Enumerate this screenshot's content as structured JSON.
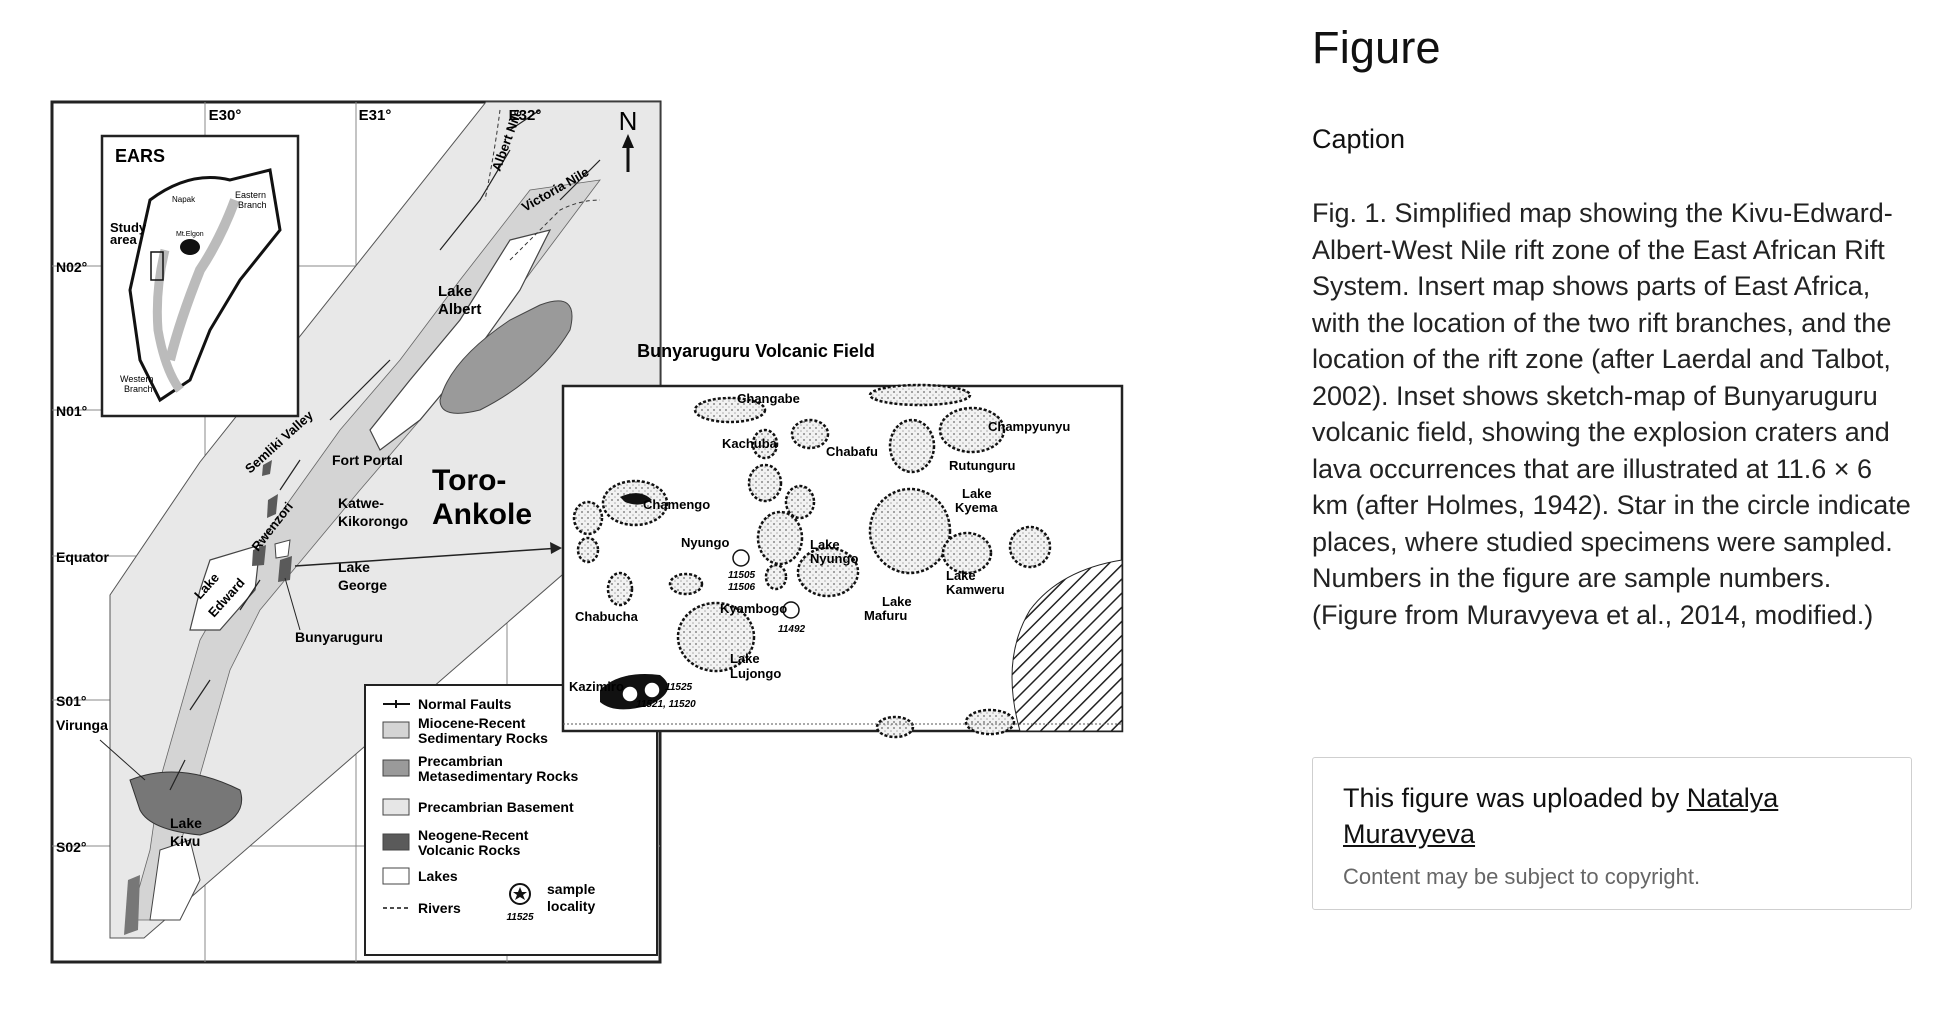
{
  "sidebar": {
    "heading": "Figure",
    "caption_label": "Caption",
    "caption_text": "Fig. 1. Simplified map showing the Kivu-Edward-Albert-West Nile rift zone of the East African Rift System. Insert map shows parts of East Africa, with the location of the two rift branches, and the location of the rift zone (after Laerdal and Talbot, 2002). Inset shows sketch-map of Bunyaruguru volcanic field, showing the explosion craters and lava occurrences that are illustrated at 11.6 × 6 km (after Holmes, 1942). Star in the circle indicate places, where studied specimens were sampled. Numbers in the figure are sample numbers. (Figure from Muravyeva et al., 2014, modified.)"
  },
  "upload": {
    "prefix": "This figure was uploaded by ",
    "author": "Natalya Muravyeva",
    "notice": "Content may be subject to copyright."
  },
  "map": {
    "lon_labels": [
      "E30°",
      "E31°",
      "E32°"
    ],
    "lat_labels": [
      "N02°",
      "N01°",
      "Equator",
      "S01°",
      "S02°"
    ],
    "north": "N",
    "inset": {
      "title": "EARS",
      "labels": [
        "Napak",
        "Eastern",
        "Branch",
        "Study",
        "area",
        "Mt.Elgon",
        "Western",
        "Branch"
      ]
    },
    "features": {
      "albert_nile": "Albert Nile",
      "victoria_nile": "Victoria Nile",
      "lake_albert_1": "Lake",
      "lake_albert_2": "Albert",
      "semliki": "Semliki Valley",
      "fort_portal": "Fort Portal",
      "rwenzori": "Rwenzori",
      "katwe_1": "Katwe-",
      "katwe_2": "Kikorongo",
      "toro_1": "Toro-",
      "toro_2": "Ankole",
      "lake_edward_1": "Lake",
      "lake_edward_2": "Edward",
      "lake_george_1": "Lake",
      "lake_george_2": "George",
      "bunyaruguru": "Bunyaruguru",
      "virunga": "Virunga",
      "lake_kivu_1": "Lake",
      "lake_kivu_2": "Kivu"
    },
    "legend": [
      {
        "label": "Normal Faults",
        "label2": ""
      },
      {
        "label": "Miocene-Recent",
        "label2": "Sedimentary Rocks"
      },
      {
        "label": "Precambrian",
        "label2": "Metasedimentary Rocks"
      },
      {
        "label": "Precambrian Basement",
        "label2": ""
      },
      {
        "label": "Neogene-Recent",
        "label2": "Volcanic Rocks"
      },
      {
        "label": "Lakes",
        "label2": ""
      },
      {
        "label": "Rivers",
        "label2": ""
      }
    ],
    "legend_sample": {
      "line1": "sample",
      "line2": "locality",
      "number": "11525"
    },
    "colors": {
      "sed": "#d4d4d4",
      "meta": "#9a9a9a",
      "basement": "#e6e6e6",
      "volcanic": "#5a5a5a",
      "lakes": "#ffffff"
    }
  },
  "volcanic_field": {
    "title": "Bunyaruguru Volcanic Field",
    "labels": [
      "Changabe",
      "Kachuba",
      "Chabafu",
      "Champyunyu",
      "Rutunguru",
      "Chamengo",
      "Lake",
      "Kyema",
      "Nyungo",
      "Lake",
      "Nyungo",
      "Lake",
      "Kamweru",
      "Chabucha",
      "Kyambogo",
      "Lake",
      "Mafuru",
      "Lake",
      "Lujongo",
      "Kazimiro"
    ],
    "samples": [
      "11505",
      "11506",
      "11492",
      "11525",
      "11521, 11520"
    ]
  }
}
